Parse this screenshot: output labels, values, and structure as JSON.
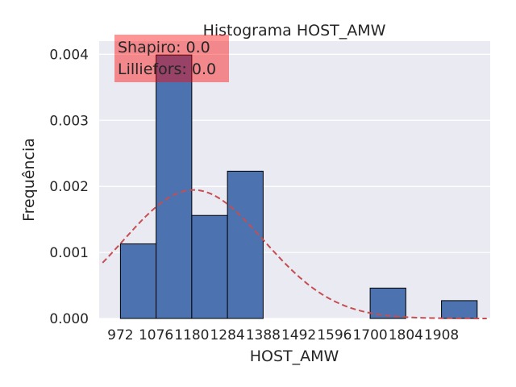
{
  "chart_data": {
    "type": "bar",
    "title": "Histograma HOST_AMW",
    "xlabel": "HOST_AMW",
    "ylabel": "Frequência",
    "xlim": [
      910,
      2050
    ],
    "ylim": [
      0,
      0.0042
    ],
    "grid": true,
    "x_ticks": [
      972,
      1076,
      1180,
      1284,
      1388,
      1492,
      1596,
      1700,
      1804,
      1908
    ],
    "x_tick_labels": [
      "972",
      "1076",
      "1180",
      "1284",
      "1388",
      "1492",
      "1596",
      "1700",
      "1804",
      "1908"
    ],
    "y_ticks": [
      0,
      0.001,
      0.002,
      0.003,
      0.004
    ],
    "y_tick_labels": [
      "0.000",
      "0.001",
      "0.002",
      "0.003",
      "0.004"
    ],
    "bins": [
      {
        "start": 972,
        "end": 1076,
        "value": 0.00113
      },
      {
        "start": 1076,
        "end": 1180,
        "value": 0.00399
      },
      {
        "start": 1180,
        "end": 1284,
        "value": 0.00156
      },
      {
        "start": 1284,
        "end": 1388,
        "value": 0.00223
      },
      {
        "start": 1388,
        "end": 1492,
        "value": 0
      },
      {
        "start": 1492,
        "end": 1596,
        "value": 0
      },
      {
        "start": 1596,
        "end": 1700,
        "value": 0
      },
      {
        "start": 1700,
        "end": 1804,
        "value": 0.00046
      },
      {
        "start": 1804,
        "end": 1908,
        "value": 0
      },
      {
        "start": 1908,
        "end": 2012,
        "value": 0.00027
      }
    ],
    "normal_curve": {
      "mean": 1185,
      "std": 205,
      "x_range": [
        920,
        2040
      ]
    },
    "annotation": [
      "Shapiro: 0.0",
      "Lilliefors: 0.0"
    ],
    "colors": {
      "bar": "#4c72b0",
      "bar_edge": "#000000",
      "curve": "#c44e52",
      "background": "#eaeaf2",
      "grid": "#ffffff",
      "annotation_box": "#ff0000"
    }
  }
}
